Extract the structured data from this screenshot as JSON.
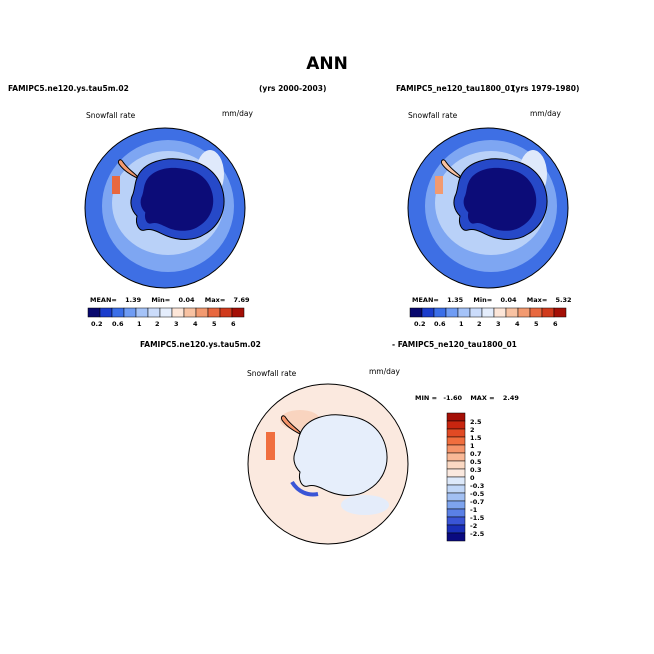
{
  "title": "ANN",
  "panels": [
    {
      "case": "FAMIPC5.ne120.ys.tau5m.02",
      "years": "(yrs 2000-2003)",
      "variable": "Snowfall rate",
      "units": "mm/day",
      "stats": {
        "mean_label": "MEAN=",
        "mean": "1.39",
        "min_label": "Min=",
        "min": "0.04",
        "max_label": "Max=",
        "max": "7.69"
      },
      "colorbar_ticks": [
        "0.2",
        "0.6",
        "1",
        "2",
        "3",
        "4",
        "5",
        "6"
      ]
    },
    {
      "case": "FAMIPC5_ne120_tau1800_01",
      "years": "(yrs 1979-1980)",
      "variable": "Snowfall rate",
      "units": "mm/day",
      "stats": {
        "mean_label": "MEAN=",
        "mean": "1.35",
        "min_label": "Min=",
        "min": "0.04",
        "max_label": "Max=",
        "max": "5.32"
      },
      "colorbar_ticks": [
        "0.2",
        "0.6",
        "1",
        "2",
        "3",
        "4",
        "5",
        "6"
      ]
    }
  ],
  "difference": {
    "case_a": "FAMIPC5.ne120.ys.tau5m.02",
    "case_b": "- FAMIPC5_ne120_tau1800_01",
    "variable": "Snowfall rate",
    "units": "mm/day",
    "min_label": "MIN =",
    "min": "-1.60",
    "max_label": "MAX =",
    "max": "2.49",
    "colorbar_ticks": [
      "2.5",
      "2",
      "1.5",
      "1",
      "0.7",
      "0.5",
      "0.3",
      "0",
      "-0.3",
      "-0.5",
      "-0.7",
      "-1",
      "-1.5",
      "-2",
      "-2.5"
    ]
  },
  "colors": {
    "abs_scale": [
      "#08086e",
      "#1a3ccc",
      "#3a6ee8",
      "#6f9cf4",
      "#a5c3f8",
      "#cbdcfb",
      "#e4edfc",
      "#fde6d8",
      "#f8c2a2",
      "#f29a70",
      "#e8683f",
      "#d03a1c",
      "#a40f06"
    ],
    "diff_scale": [
      "#a40f06",
      "#c8250f",
      "#e14a24",
      "#f06e3e",
      "#f5946a",
      "#f9b896",
      "#fbd9c3",
      "#fbe9df",
      "#dde9fa",
      "#c0d6f7",
      "#a2c0f3",
      "#7ea4ee",
      "#5a80e6",
      "#3a55d6",
      "#1a2fb8",
      "#0a0a80"
    ],
    "ocean_far": "#3e6fe4",
    "ocean_mid": "#7ea6f2",
    "ocean_near": "#b9d1f8",
    "antarctica_interior": "#0c0c78",
    "antarctica_coast": "#2649c8",
    "diff_background": "#fbe9df",
    "diff_antarctica": "#e6eefb"
  }
}
